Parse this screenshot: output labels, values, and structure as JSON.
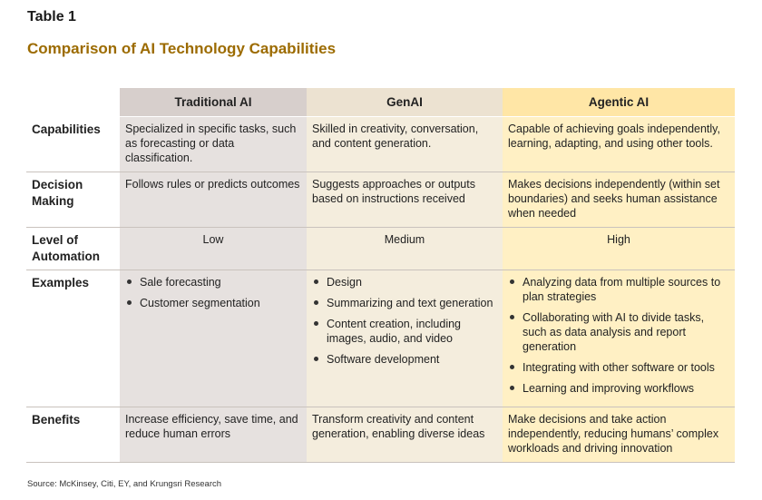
{
  "table_label": "Table 1",
  "title": "Comparison of AI Technology Capabilities",
  "columns": [
    "",
    "Traditional AI",
    "GenAI",
    "Agentic AI"
  ],
  "rows": {
    "capabilities": {
      "label": "Capabilities",
      "traditional": "Specialized in specific tasks, such as forecasting or data classification.",
      "genai": "Skilled in creativity, conversation, and content generation.",
      "agentic": "Capable of achieving goals independently, learning, adapting, and using other tools."
    },
    "decision": {
      "label_line1": "Decision",
      "label_line2": "Making",
      "traditional": "Follows rules or predicts outcomes",
      "genai": "Suggests approaches or outputs based on instructions received",
      "agentic": "Makes decisions independently (within set boundaries) and seeks human assistance when needed"
    },
    "automation": {
      "label_line1": "Level of",
      "label_line2": "Automation",
      "traditional": "Low",
      "genai": "Medium",
      "agentic": "High"
    },
    "examples": {
      "label": "Examples",
      "traditional": [
        "Sale forecasting",
        "Customer segmentation"
      ],
      "genai": [
        "Design",
        "Summarizing and text generation",
        "Content creation, including images, audio, and video",
        "Software development"
      ],
      "agentic": [
        "Analyzing data from multiple sources to plan strategies",
        "Collaborating with AI to divide tasks, such as data analysis and report generation",
        "Integrating with other software or tools",
        "Learning and improving workflows"
      ]
    },
    "benefits": {
      "label": "Benefits",
      "traditional": "Increase efficiency, save time, and reduce human errors",
      "genai": "Transform creativity and content generation, enabling diverse ideas",
      "agentic": "Make decisions and take action independently, reducing humans’ complex workloads and driving innovation"
    }
  },
  "source": "Source: McKinsey, Citi, EY, and Krungsri Research",
  "colors": {
    "title": "#9c6b00",
    "traditional_header": "#d7cfcc",
    "genai_header": "#ece2d1",
    "agentic_header": "#ffe6a6"
  }
}
